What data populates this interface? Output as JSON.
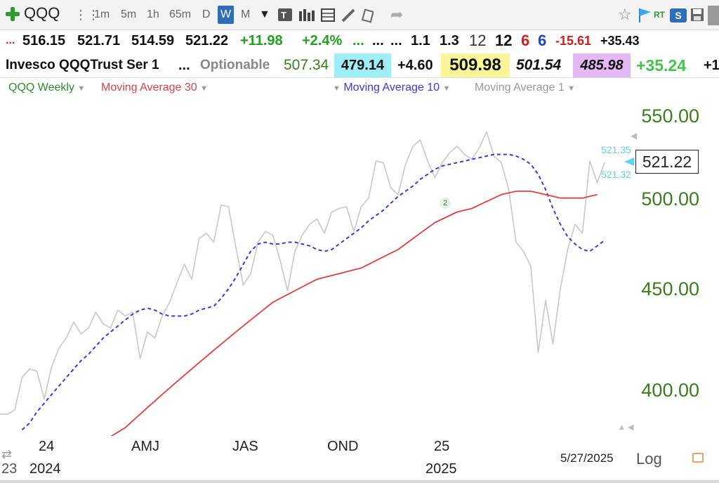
{
  "toolbar": {
    "symbol": "QQQ",
    "intervals": [
      "1m",
      "5m",
      "1h",
      "65m",
      "D",
      "W",
      "M"
    ],
    "selected_interval": "W",
    "rt_label": "RT",
    "s_label": "S"
  },
  "quote_row": {
    "open": "516.15",
    "high": "521.71",
    "low": "514.59",
    "close": "521.22",
    "change": "+11.98",
    "change_pct": "+2.4%",
    "ellipses": [
      "...",
      "...",
      "..."
    ],
    "v1": "1.1",
    "v2": "1.3",
    "v3": "12",
    "v4": "12",
    "v5": "6",
    "v6": "6",
    "v7": "-15.61",
    "v8": "+35.43"
  },
  "info_row": {
    "name": "Invesco QQQTrust Ser 1",
    "ellipsis": "...",
    "optionable": "Optionable",
    "f1": "507.34",
    "f2": "479.14",
    "f3": "+4.60",
    "f4": "509.98",
    "f5": "501.54",
    "f6": "485.98",
    "f7": "+35.24",
    "f8": "+1"
  },
  "legend": {
    "weekly": "QQQ Weekly",
    "ma30": "Moving Average 30",
    "ma10": "Moving Average 10",
    "ma1": "Moving Average 1"
  },
  "colors": {
    "ma30": "#e04040",
    "ma10": "#3a3adc",
    "price": "#c8c8c8",
    "axis_text": "#3a7d1e",
    "weekly_text": "#2e8b2e",
    "cyan": "#5fd0f0"
  },
  "price_box": "521.22",
  "price_labels": [
    "521.35",
    "521.32"
  ],
  "marker": "2",
  "date_label": "5/27/2025",
  "log_label": "Log",
  "x_labels_top": [
    "24",
    "AMJ",
    "JAS",
    "OND",
    "25"
  ],
  "x_labels_bottom": [
    "23",
    "2024",
    "2025"
  ],
  "chart_data": {
    "type": "line",
    "scale": "log",
    "ylim": [
      378,
      552
    ],
    "yticks": [
      "550.00",
      "500.00",
      "450.00",
      "400.00"
    ],
    "series": [
      {
        "name": "QQQ Weekly",
        "style": "price",
        "values": [
          389,
          389,
          391,
          406,
          410,
          409,
          396,
          411,
          420,
          425,
          433,
          427,
          430,
          438,
          432,
          430,
          439,
          436,
          438,
          415,
          428,
          425,
          436,
          443,
          453,
          463,
          455,
          477,
          480,
          475,
          496,
          495,
          472,
          452,
          458,
          475,
          481,
          479,
          465,
          449,
          470,
          479,
          485,
          488,
          480,
          492,
          494,
          495,
          481,
          495,
          500,
          522,
          521,
          506,
          502,
          520,
          531,
          535,
          522,
          512,
          521,
          527,
          531,
          526,
          523,
          530,
          540,
          525,
          521,
          505,
          475,
          470,
          462,
          418,
          444,
          422,
          450,
          471,
          485,
          480,
          522,
          509,
          521
        ]
      },
      {
        "name": "Moving Average 10",
        "style": "ma10",
        "values": [
          382,
          385,
          390,
          394,
          398,
          402,
          406,
          410,
          414,
          417,
          421,
          425,
          428,
          431,
          434,
          437,
          439,
          440,
          439,
          437,
          436,
          436,
          436,
          437,
          439,
          440,
          441,
          445,
          450,
          456,
          463,
          470,
          474,
          475,
          474,
          474,
          475,
          475,
          474,
          473,
          471,
          470,
          471,
          474,
          477,
          480,
          483,
          487,
          490,
          493,
          497,
          501,
          504,
          507,
          511,
          514,
          517,
          519,
          520,
          521,
          522,
          523,
          524,
          525,
          526,
          526,
          526,
          525,
          523,
          520,
          514,
          505,
          494,
          485,
          478,
          474,
          471,
          470,
          473,
          476
        ]
      },
      {
        "name": "Moving Average 30",
        "style": "ma30",
        "values": [
          379,
          381,
          383,
          386,
          389,
          392,
          395,
          398,
          401,
          404,
          407,
          410,
          413,
          416,
          419,
          422,
          425,
          428,
          431,
          434,
          437,
          440,
          443,
          445,
          447,
          449,
          451,
          453,
          455,
          456,
          457,
          458,
          459,
          460,
          461,
          463,
          465,
          467,
          469,
          471,
          474,
          477,
          480,
          483,
          486,
          488,
          490,
          492,
          493,
          494,
          496,
          498,
          500,
          502,
          503,
          504,
          504,
          504,
          503,
          502,
          501,
          500,
          500,
          500,
          500,
          501,
          502
        ]
      }
    ],
    "series_offsets": [
      0,
      3,
      15
    ]
  }
}
